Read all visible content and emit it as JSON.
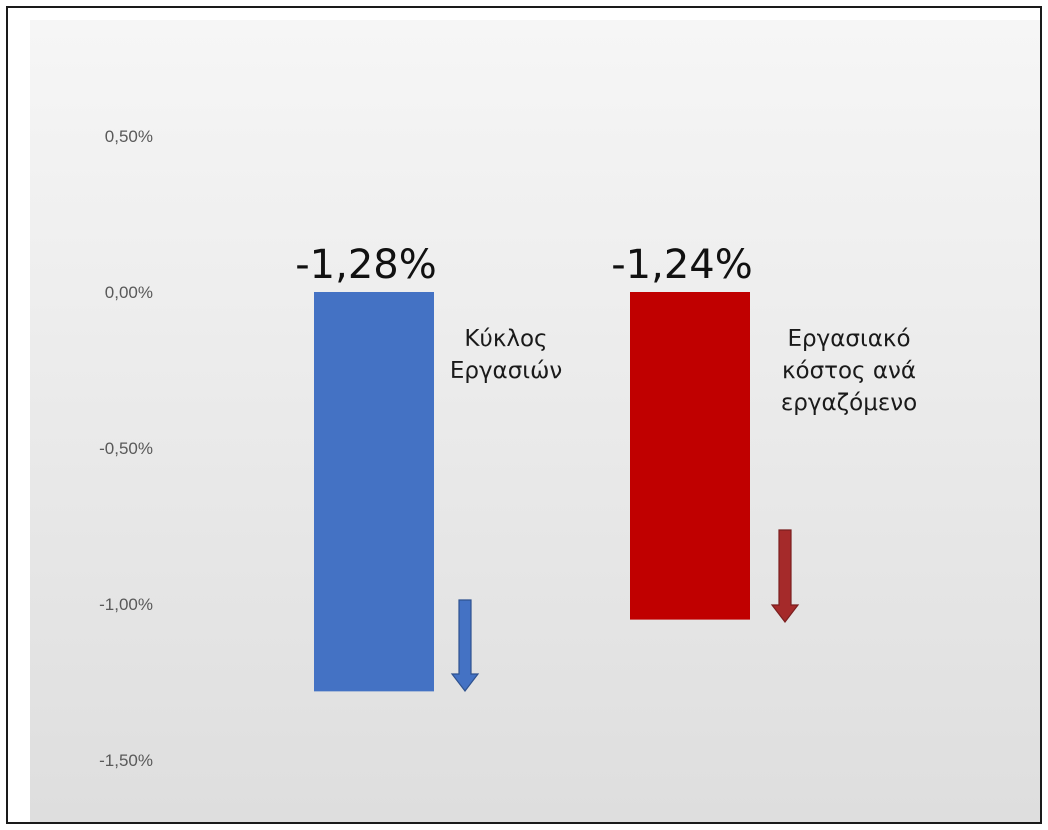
{
  "chart_data": {
    "type": "bar",
    "categories": [
      "Κύκλος Εργασιών",
      "Εργασιακό κόστος ανά εργαζόμενο"
    ],
    "values": [
      -1.28,
      -1.24
    ],
    "data_labels": [
      "-1,28%",
      "-1,24%"
    ],
    "category_labels": [
      [
        "Κύκλος",
        "Εργασιών"
      ],
      [
        "Εργασιακό",
        "κόστος ανά",
        "εργαζόμενο"
      ]
    ],
    "ylim": [
      -1.5,
      0.5
    ],
    "yticks": [
      0.5,
      0.0,
      -0.5,
      -1.0,
      -1.5
    ],
    "ytick_labels": [
      "0,50%",
      "0,00%",
      "-0,50%",
      "-1,00%",
      "-1,50%"
    ],
    "colors": [
      "#4472c4",
      "#c00000"
    ],
    "arrow_colors": [
      "#4472c4",
      "#a52a2a"
    ],
    "grid": false,
    "legend": "none"
  }
}
